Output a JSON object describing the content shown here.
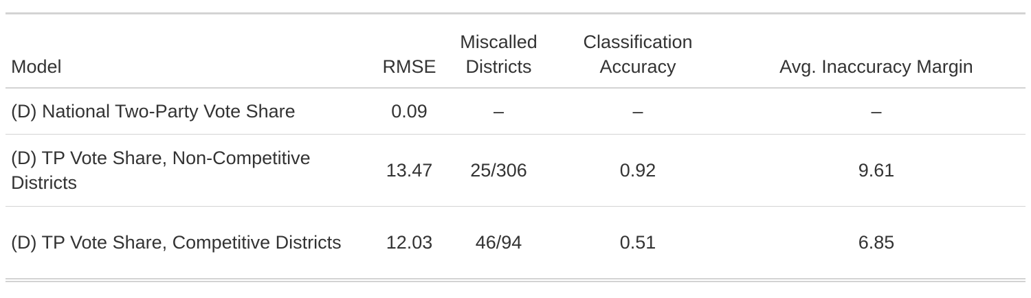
{
  "table": {
    "headers": {
      "model": "Model",
      "rmse": "RMSE",
      "miscalled": "Miscalled Districts",
      "accuracy": "Classification Accuracy",
      "margin": "Avg. Inaccuracy Margin"
    },
    "rows": [
      {
        "model": "(D) National Two-Party Vote Share",
        "rmse": "0.09",
        "miscalled": "–",
        "accuracy": "–",
        "margin": "–"
      },
      {
        "model": "(D) TP Vote Share, Non-Competitive Districts",
        "rmse": "13.47",
        "miscalled": "25/306",
        "accuracy": "0.92",
        "margin": "9.61"
      },
      {
        "model": "(D) TP Vote Share, Competitive Districts",
        "rmse": "12.03",
        "miscalled": "46/94",
        "accuracy": "0.51",
        "margin": "6.85"
      }
    ]
  }
}
